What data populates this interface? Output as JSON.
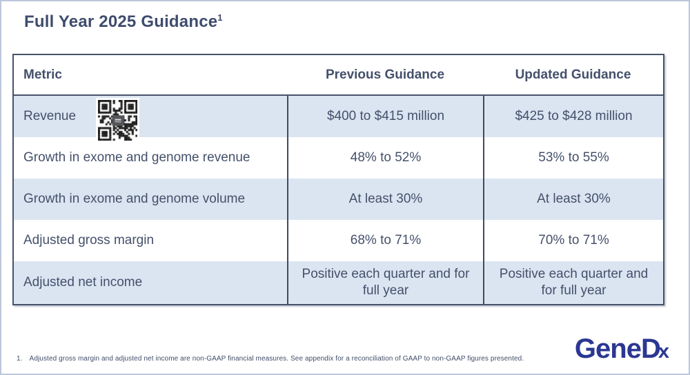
{
  "slide": {
    "title": "Full Year 2025 Guidance",
    "title_superscript": "1"
  },
  "table": {
    "headers": [
      "Metric",
      "Previous Guidance",
      "Updated Guidance"
    ],
    "rows": [
      {
        "metric": "Revenue",
        "previous": "$400 to $415 million",
        "updated": "$425 to $428 million"
      },
      {
        "metric": "Growth in exome and genome revenue",
        "previous": "48% to 52%",
        "updated": "53% to 55%"
      },
      {
        "metric": "Growth in exome and genome volume",
        "previous": "At least 30%",
        "updated": "At least 30%"
      },
      {
        "metric": "Adjusted gross margin",
        "previous": "68% to 71%",
        "updated": "70% to 71%"
      },
      {
        "metric": "Adjusted net income",
        "previous": "Positive each quarter and for full year",
        "updated": "Positive each quarter and for full year"
      }
    ]
  },
  "footnote": {
    "number": "1.",
    "text": "Adjusted gross margin and adjusted net income are non-GAAP financial measures. See appendix for a reconciliation of GAAP to non-GAAP figures presented."
  },
  "logo": {
    "part_gene": "Gene",
    "part_d": "D",
    "part_x": "x",
    "full_name": "GeneDx"
  },
  "icons": {
    "qr_code": "qr-code"
  },
  "colors": {
    "text_navy": "#44506b",
    "title_navy": "#3e4c6d",
    "row_alt_blue": "#dbe5f1",
    "table_border": "#46526a",
    "column_divider": "#3e4a5e",
    "logo_blue": "#2b3792",
    "slide_border": "#bcc7da"
  }
}
